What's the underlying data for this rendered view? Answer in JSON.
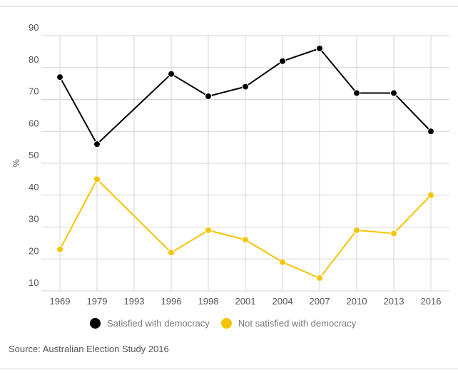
{
  "chart_data": {
    "type": "line",
    "categories": [
      "1969",
      "1979",
      "1993",
      "1996",
      "1998",
      "2001",
      "2004",
      "2007",
      "2010",
      "2013",
      "2016"
    ],
    "series": [
      {
        "name": "Satisfied with democracy",
        "color": "#000000",
        "values": [
          77,
          56,
          null,
          78,
          71,
          74,
          82,
          86,
          72,
          72,
          60
        ]
      },
      {
        "name": "Not satisfied with democracy",
        "color": "#f5c400",
        "values": [
          23,
          45,
          null,
          22,
          29,
          26,
          19,
          14,
          29,
          28,
          40
        ]
      }
    ],
    "yticks": [
      "90",
      "80",
      "70",
      "60",
      "50",
      "40",
      "30",
      "20",
      "10"
    ],
    "ylim": [
      10,
      90
    ],
    "ylabel": "%",
    "xlabel": "",
    "grid": true,
    "legend_position": "bottom-left"
  },
  "source": "Source: Australian Election Study 2016"
}
